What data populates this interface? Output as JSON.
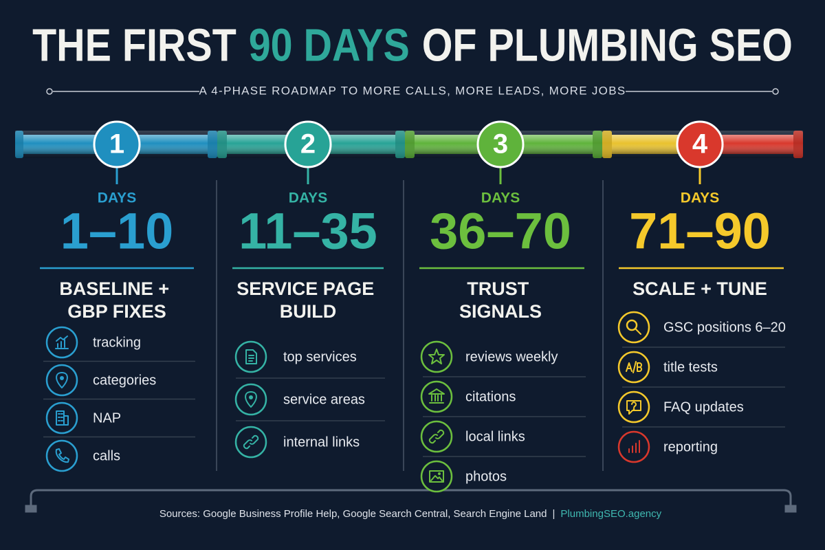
{
  "header": {
    "title_parts": [
      "THE FIRST",
      "90 DAYS",
      "OF PLUMBING SEO"
    ],
    "subtitle": "A 4-PHASE ROADMAP TO MORE CALLS, MORE LEADS, MORE JOBS"
  },
  "phases": [
    {
      "number": "1",
      "days_label": "DAYS",
      "days": "1–10",
      "title": "BASELINE + GBP FIXES",
      "items": [
        "tracking",
        "categories",
        "NAP",
        "calls"
      ]
    },
    {
      "number": "2",
      "days_label": "DAYS",
      "days": "11–35",
      "title": "SERVICE PAGE BUILD",
      "items": [
        "top services",
        "service areas",
        "internal links"
      ]
    },
    {
      "number": "3",
      "days_label": "DAYS",
      "days": "36–70",
      "title": "TRUST SIGNALS",
      "items": [
        "reviews weekly",
        "citations",
        "local links",
        "photos"
      ]
    },
    {
      "number": "4",
      "days_label": "DAYS",
      "days": "71–90",
      "title": "SCALE + TUNE",
      "items": [
        "GSC positions 6–20",
        "title tests",
        "FAQ updates",
        "reporting"
      ]
    }
  ],
  "footer": {
    "sources": "Sources: Google Business Profile Help, Google Search Central, Search Engine Land",
    "separator": "|",
    "site": "PlumbingSEO.agency"
  }
}
